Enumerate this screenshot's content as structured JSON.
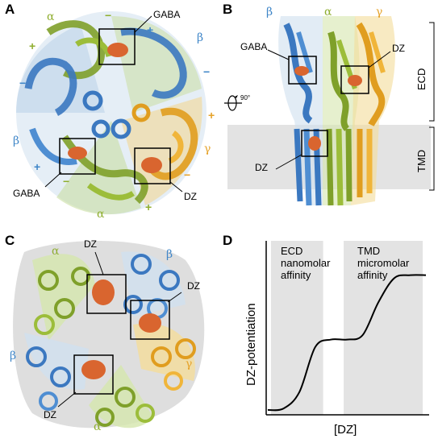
{
  "panels": {
    "A": {
      "label": "A",
      "gaba_top": "GABA",
      "gaba_bottom": "GABA",
      "dz": "DZ",
      "subunits": [
        "α",
        "β",
        "β",
        "γ",
        "α"
      ],
      "signs": [
        "−",
        "+",
        "−",
        "+",
        "−",
        "+",
        "−",
        "+",
        "−",
        "+"
      ]
    },
    "B": {
      "label": "B",
      "gaba": "GABA",
      "dz_top": "DZ",
      "dz_bottom": "DZ",
      "subunits": [
        "β",
        "α",
        "γ"
      ],
      "rotation": "90°",
      "ecd": "ECD",
      "tmd": "TMD"
    },
    "C": {
      "label": "C",
      "dz_labels": [
        "DZ",
        "DZ",
        "DZ"
      ],
      "subunits": [
        "α",
        "β",
        "β",
        "γ",
        "α"
      ]
    },
    "D": {
      "label": "D",
      "region1_line1": "ECD",
      "region1_line2": "nanomolar",
      "region1_line3": "affinity",
      "region2_line1": "TMD",
      "region2_line2": "micromolar",
      "region2_line3": "affinity"
    }
  },
  "colors": {
    "alpha": "#8fae2f",
    "beta": "#3f86c8",
    "gamma": "#e6a32a",
    "ligand": "#d9652f",
    "band": "#e3e3e3"
  },
  "chart_data": {
    "type": "line",
    "title": "",
    "xlabel": "[DZ]",
    "ylabel": "DZ-potentiation",
    "description_shape": "biphasic",
    "x": [
      0,
      0.1,
      0.2,
      0.3,
      0.4,
      0.5,
      0.6,
      0.7,
      0.8,
      0.9,
      1.0
    ],
    "y": [
      0.0,
      0.01,
      0.12,
      0.42,
      0.47,
      0.47,
      0.5,
      0.72,
      0.88,
      0.9,
      0.9
    ],
    "ylim": [
      0,
      1
    ],
    "xlim": [
      0,
      1
    ],
    "grid": false,
    "shaded_regions": [
      {
        "name": "ECD nanomolar affinity",
        "x_range": [
          0.02,
          0.35
        ]
      },
      {
        "name": "TMD micromolar affinity",
        "x_range": [
          0.48,
          0.98
        ]
      }
    ]
  }
}
